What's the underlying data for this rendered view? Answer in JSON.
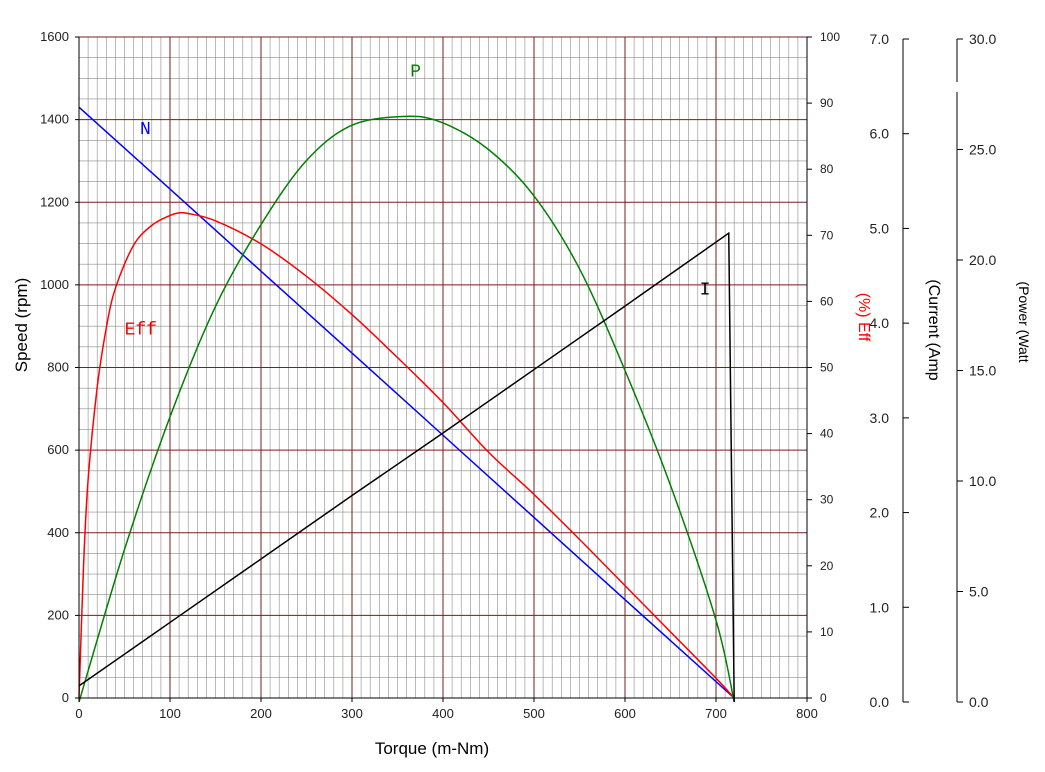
{
  "chart_data": {
    "type": "line",
    "title": "",
    "xlabel": "Torque (m-Nm)",
    "ylabel": "Speed (rpm)",
    "xlim": [
      0,
      800
    ],
    "ylim": [
      0,
      1600
    ],
    "x_ticks": [
      "0",
      "100",
      "200",
      "300",
      "400",
      "500",
      "600",
      "700",
      "800"
    ],
    "y_ticks": [
      "0",
      "200",
      "400",
      "600",
      "800",
      "1000",
      "1200",
      "1400",
      "1600"
    ],
    "grid": true,
    "secondary_axes": [
      {
        "key": "eff",
        "label": "Eff (%)",
        "label_display": "(%) Eff",
        "color": "#ff0000",
        "range": [
          0,
          100
        ],
        "ticks": [
          "0",
          "10",
          "20",
          "30",
          "40",
          "50",
          "60",
          "70",
          "80",
          "90",
          "100"
        ]
      },
      {
        "key": "current",
        "label": "(Current (Amp",
        "color": "#000000",
        "range": [
          0,
          7
        ],
        "ticks": [
          "0.0",
          "1.0",
          "2.0",
          "3.0",
          "4.0",
          "5.0",
          "6.0",
          "7.0"
        ]
      },
      {
        "key": "power",
        "label": "(Power (Watt",
        "color": "#000000",
        "range": [
          0,
          30
        ],
        "ticks": [
          "0.0",
          "5.0",
          "10.0",
          "15.0",
          "20.0",
          "25.0",
          "30.0"
        ]
      }
    ],
    "series": [
      {
        "name": "N",
        "axis": "speed",
        "color": "#0000ff",
        "x": [
          0,
          100,
          200,
          300,
          400,
          500,
          600,
          720
        ],
        "y": [
          1430,
          1232,
          1033,
          835,
          636,
          437,
          238,
          0
        ]
      },
      {
        "name": "Eff",
        "axis": "eff",
        "color": "#ff0000",
        "x": [
          0,
          5,
          10,
          20,
          30,
          40,
          60,
          80,
          100,
          110,
          120,
          150,
          200,
          250,
          300,
          350,
          400,
          450,
          500,
          550,
          600,
          650,
          700,
          720
        ],
        "y": [
          0,
          20,
          33,
          47,
          56,
          62,
          68.5,
          71.5,
          73,
          73.4,
          73.3,
          72.2,
          68.7,
          63.8,
          58,
          51.5,
          44.7,
          37.2,
          30.8,
          24,
          17,
          10,
          3,
          0
        ]
      },
      {
        "name": "P",
        "axis": "power",
        "color": "#008000",
        "x": [
          0,
          50,
          100,
          150,
          200,
          250,
          300,
          360,
          400,
          450,
          500,
          550,
          600,
          650,
          700,
          720
        ],
        "y": [
          0,
          6.9,
          12.9,
          17.9,
          21.6,
          24.5,
          26.1,
          26.5,
          26.2,
          25.0,
          22.9,
          19.6,
          15.0,
          9.8,
          3.7,
          0
        ]
      },
      {
        "name": "I",
        "axis": "current",
        "color": "#000000",
        "x": [
          0,
          100,
          200,
          300,
          400,
          500,
          600,
          714,
          720
        ],
        "y": [
          0.17,
          0.84,
          1.51,
          2.18,
          2.84,
          3.51,
          4.18,
          4.95,
          0
        ]
      }
    ],
    "annotations": [
      {
        "text": "N",
        "series": "N",
        "x": 73,
        "y": 1365
      },
      {
        "text": "Eff",
        "series": "Eff",
        "x": 68,
        "y": 55
      },
      {
        "text": "P",
        "series": "P",
        "x": 370,
        "y": 28.3
      },
      {
        "text": "I",
        "series": "I",
        "x": 688,
        "y": 4.3
      }
    ]
  }
}
